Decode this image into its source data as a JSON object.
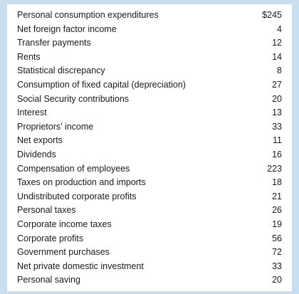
{
  "table": {
    "rows": [
      {
        "label": "Personal consumption expenditures",
        "value": "$245"
      },
      {
        "label": "Net foreign factor income",
        "value": "4"
      },
      {
        "label": "Transfer payments",
        "value": "12"
      },
      {
        "label": "Rents",
        "value": "14"
      },
      {
        "label": "Statistical discrepancy",
        "value": "8"
      },
      {
        "label": "Consumption of fixed capital (depreciation)",
        "value": "27"
      },
      {
        "label": "Social Security contributions",
        "value": "20"
      },
      {
        "label": "Interest",
        "value": "13"
      },
      {
        "label": "Proprietors’ income",
        "value": "33"
      },
      {
        "label": "Net exports",
        "value": "11"
      },
      {
        "label": "Dividends",
        "value": "16"
      },
      {
        "label": "Compensation of employees",
        "value": "223"
      },
      {
        "label": "Taxes on production and imports",
        "value": "18"
      },
      {
        "label": "Undistributed corporate profits",
        "value": "21"
      },
      {
        "label": "Personal taxes",
        "value": "26"
      },
      {
        "label": "Corporate income taxes",
        "value": "19"
      },
      {
        "label": "Corporate profits",
        "value": "56"
      },
      {
        "label": "Government purchases",
        "value": "72"
      },
      {
        "label": "Net private domestic investment",
        "value": "33"
      },
      {
        "label": "Personal saving",
        "value": "20"
      }
    ]
  },
  "colors": {
    "border": "#c9dff0",
    "panel": "#ffffff",
    "text": "#1a1a1a"
  }
}
